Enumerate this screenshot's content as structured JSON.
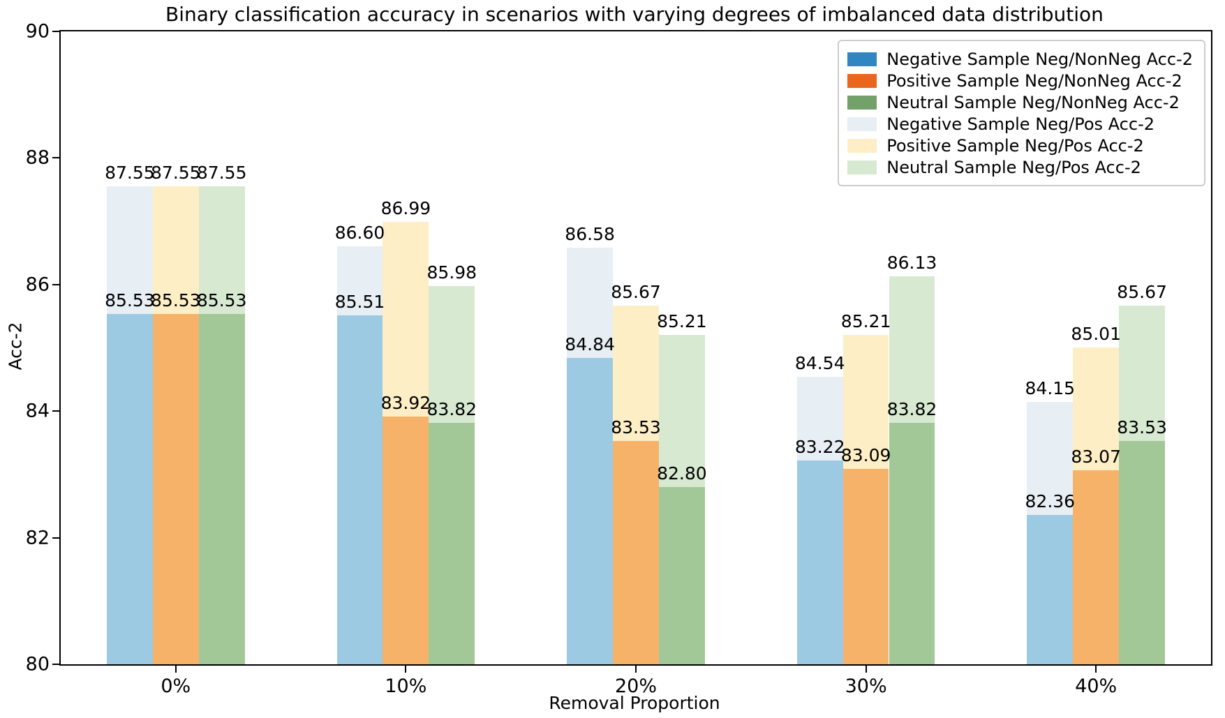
{
  "chart_data": {
    "type": "bar",
    "title": "Binary classification accuracy in scenarios with varying degrees of imbalanced data distribution",
    "xlabel": "Removal Proportion",
    "ylabel": "Acc-2",
    "ylim": [
      80,
      90
    ],
    "yticks": [
      80,
      82,
      84,
      86,
      88,
      90
    ],
    "categories": [
      "0%",
      "10%",
      "20%",
      "30%",
      "40%"
    ],
    "grid": false,
    "legend_position": "upper-right",
    "bar_layout": "back bars are Neg/Pos series (pale), front bars are Neg/NonNeg series (semi-transparent) drawn over them at the same x positions",
    "series": [
      {
        "name": "Negative Sample Neg/NonNeg Acc-2",
        "layer": "front",
        "column": "negative",
        "color": "#9ccae3",
        "legend_color": "#2f86c0",
        "values": [
          85.53,
          85.51,
          84.84,
          83.22,
          82.36
        ]
      },
      {
        "name": "Positive Sample Neg/NonNeg Acc-2",
        "layer": "front",
        "column": "positive",
        "color": "#f5b268",
        "legend_color": "#e8671d",
        "values": [
          85.53,
          83.92,
          83.53,
          83.09,
          83.07
        ]
      },
      {
        "name": "Neutral Sample Neg/NonNeg Acc-2",
        "layer": "front",
        "column": "neutral",
        "color": "#a3c897",
        "legend_color": "#74a06a",
        "values": [
          85.53,
          83.82,
          82.8,
          83.82,
          83.53
        ]
      },
      {
        "name": "Negative Sample Neg/Pos Acc-2",
        "layer": "back",
        "column": "negative",
        "color": "#e7eef4",
        "legend_color": "#e7eef4",
        "values": [
          87.55,
          86.6,
          86.58,
          84.54,
          84.15
        ]
      },
      {
        "name": "Positive Sample Neg/Pos Acc-2",
        "layer": "back",
        "column": "positive",
        "color": "#fdeec5",
        "legend_color": "#fdeec5",
        "values": [
          87.55,
          86.99,
          85.67,
          85.21,
          85.01
        ]
      },
      {
        "name": "Neutral Sample Neg/Pos Acc-2",
        "layer": "back",
        "column": "neutral",
        "color": "#d7e9d0",
        "legend_color": "#d7e9d0",
        "values": [
          87.55,
          85.98,
          85.21,
          86.13,
          85.67
        ]
      }
    ]
  }
}
